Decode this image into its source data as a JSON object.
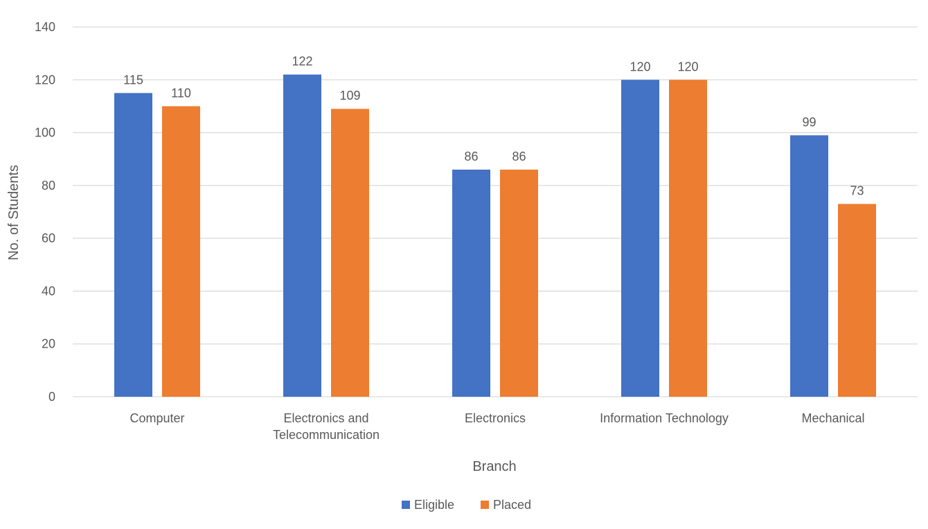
{
  "chart_data": {
    "type": "bar",
    "title": "",
    "xlabel": "Branch",
    "ylabel": "No. of Students",
    "ylim": [
      0,
      140
    ],
    "yticks": [
      0,
      20,
      40,
      60,
      80,
      100,
      120,
      140
    ],
    "grid": true,
    "legend_position": "bottom",
    "categories": [
      [
        "Computer"
      ],
      [
        "Electronics and",
        "Telecommunication"
      ],
      [
        "Electronics"
      ],
      [
        "Information Technology"
      ],
      [
        "Mechanical"
      ]
    ],
    "series": [
      {
        "name": "Eligible",
        "color": "#4472C4",
        "values": [
          115,
          122,
          86,
          120,
          99
        ]
      },
      {
        "name": "Placed",
        "color": "#ED7D31",
        "values": [
          110,
          109,
          86,
          120,
          73
        ]
      }
    ]
  }
}
